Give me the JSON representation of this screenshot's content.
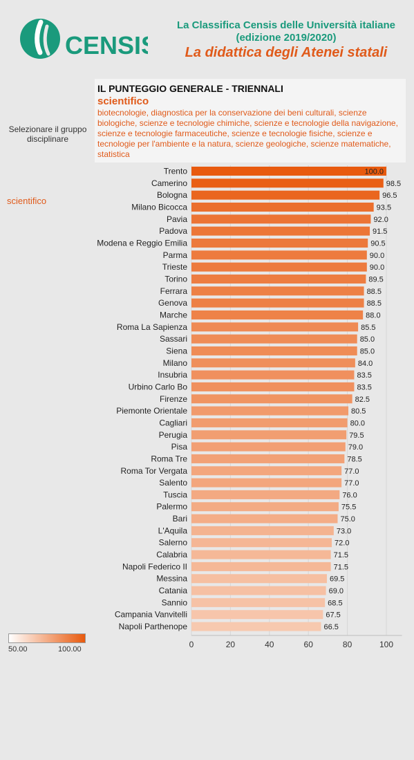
{
  "header": {
    "logo_text": "CENSIS",
    "title_line1": "La Classifica Censis delle Università italiane",
    "title_line2": "(edizione 2019/2020)",
    "title_line3": "La didattica degli Atenei statali"
  },
  "panel": {
    "title": "IL PUNTEGGIO GENERALE - TRIENNALI",
    "subtitle": "scientifico",
    "description": "biotecnologie, diagnostica per la conservazione dei beni culturali, scienze biologiche, scienze e tecnologie chimiche, scienze e tecnologie della navigazione, scienze e tecnologie farmaceutiche, scienze e tecnologie fisiche, scienze e tecnologie per l'ambiente e la natura, scienze geologiche, scienze matematiche, statistica"
  },
  "filter": {
    "label": "Selezionare il gruppo disciplinare",
    "value": "scientifico"
  },
  "legend": {
    "min_label": "50.00",
    "max_label": "100.00",
    "color_min": "#ffffff",
    "color_max": "#e85a0e"
  },
  "colors": {
    "brand_green": "#1a9a7c",
    "accent_orange": "#e05a1a"
  },
  "chart_data": {
    "type": "bar",
    "orientation": "horizontal",
    "categories": [
      "Trento",
      "Camerino",
      "Bologna",
      "Milano Bicocca",
      "Pavia",
      "Padova",
      "Modena e Reggio Emilia",
      "Parma",
      "Trieste",
      "Torino",
      "Ferrara",
      "Genova",
      "Marche",
      "Roma La Sapienza",
      "Sassari",
      "Siena",
      "Milano",
      "Insubria",
      "Urbino Carlo Bo",
      "Firenze",
      "Piemonte Orientale",
      "Cagliari",
      "Perugia",
      "Pisa",
      "Roma Tre",
      "Roma Tor Vergata",
      "Salento",
      "Tuscia",
      "Palermo",
      "Bari",
      "L'Aquila",
      "Salerno",
      "Calabria",
      "Napoli Federico II",
      "Messina",
      "Catania",
      "Sannio",
      "Campania Vanvitelli",
      "Napoli Parthenope"
    ],
    "values": [
      100.0,
      98.5,
      96.5,
      93.5,
      92.0,
      91.5,
      90.5,
      90.0,
      90.0,
      89.5,
      88.5,
      88.5,
      88.0,
      85.5,
      85.0,
      85.0,
      84.0,
      83.5,
      83.5,
      82.5,
      80.5,
      80.0,
      79.5,
      79.0,
      78.5,
      77.0,
      77.0,
      76.0,
      75.5,
      75.0,
      73.0,
      72.0,
      71.5,
      71.5,
      69.5,
      69.0,
      68.5,
      67.5,
      66.5
    ],
    "value_labels": [
      "100.0",
      "98.5",
      "96.5",
      "93.5",
      "92.0",
      "91.5",
      "90.5",
      "90.0",
      "90.0",
      "89.5",
      "88.5",
      "88.5",
      "88.0",
      "85.5",
      "85.0",
      "85.0",
      "84.0",
      "83.5",
      "83.5",
      "82.5",
      "80.5",
      "80.0",
      "79.5",
      "79.0",
      "78.5",
      "77.0",
      "77.0",
      "76.0",
      "75.5",
      "75.0",
      "73.0",
      "72.0",
      "71.5",
      "71.5",
      "69.5",
      "69.0",
      "68.5",
      "67.5",
      "66.5"
    ],
    "x_ticks": [
      0,
      20,
      40,
      60,
      80,
      100
    ],
    "x_tick_labels": [
      "0",
      "20",
      "40",
      "60",
      "80",
      "100"
    ],
    "xlim": [
      0,
      108
    ],
    "color_scale": [
      50,
      100
    ],
    "grid": true,
    "title": "",
    "xlabel": "",
    "ylabel": ""
  }
}
